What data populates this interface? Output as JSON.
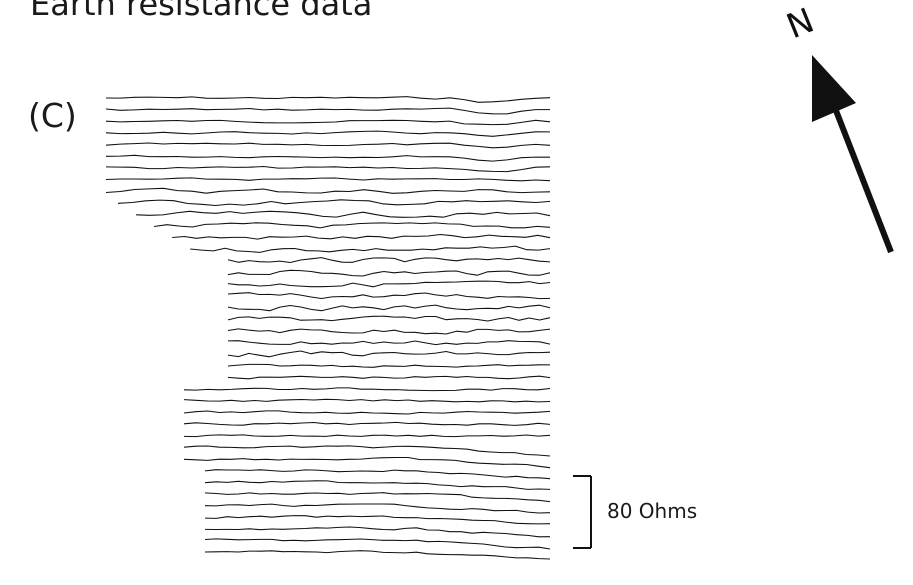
{
  "title": "Earth resistance data",
  "panel_label": "(C)",
  "north_label": "N",
  "scale_bar": {
    "label": "80 Ohms",
    "value_ohms": 80
  },
  "chart_data": {
    "type": "line",
    "title": "Earth resistance data",
    "subtitle": "(C)",
    "xlabel": "",
    "ylabel": "",
    "units": "Ohms",
    "scale_bar_ohms": 80,
    "grid": false,
    "legend": "none",
    "trace_count": 40,
    "points_per_trace": 32,
    "trace_offset_ohms": 8,
    "seed": 7
  }
}
